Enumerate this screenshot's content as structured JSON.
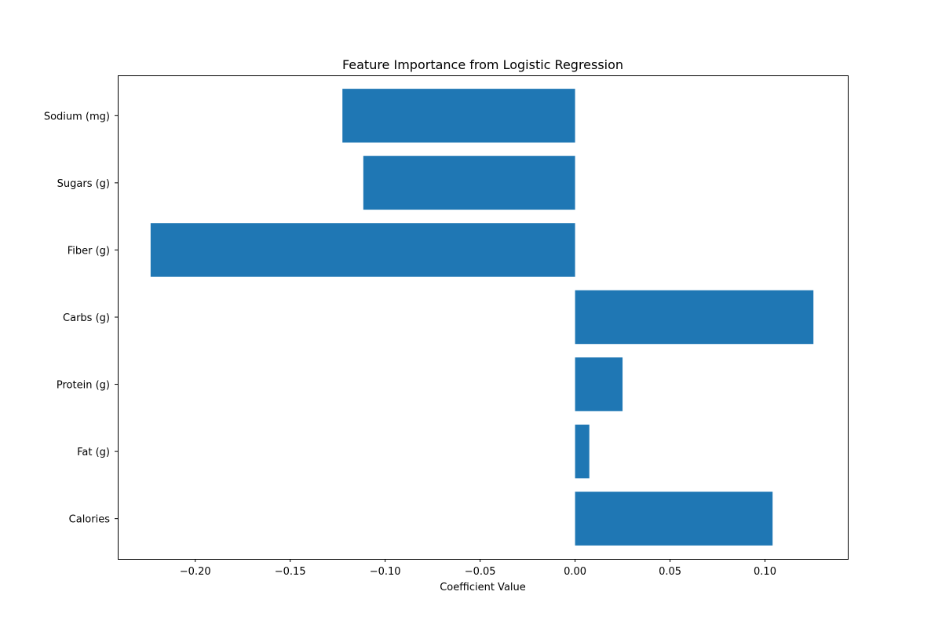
{
  "chart_data": {
    "type": "bar",
    "orientation": "horizontal",
    "title": "Feature Importance from Logistic Regression",
    "xlabel": "Coefficient Value",
    "ylabel": "",
    "categories": [
      "Calories",
      "Fat (g)",
      "Protein (g)",
      "Carbs (g)",
      "Fiber (g)",
      "Sugars (g)",
      "Sodium (mg)"
    ],
    "values": [
      0.104,
      0.0075,
      0.025,
      0.1255,
      -0.2235,
      -0.1115,
      -0.1225
    ],
    "xlim": [
      -0.2408,
      0.1436
    ],
    "xticks": [
      -0.2,
      -0.15,
      -0.1,
      -0.05,
      0.0,
      0.05,
      0.1
    ],
    "xtick_labels": [
      "−0.20",
      "−0.15",
      "−0.10",
      "−0.05",
      "0.00",
      "0.05",
      "0.10"
    ],
    "bar_color": "#1f77b4",
    "grid": false,
    "legend": "none"
  }
}
